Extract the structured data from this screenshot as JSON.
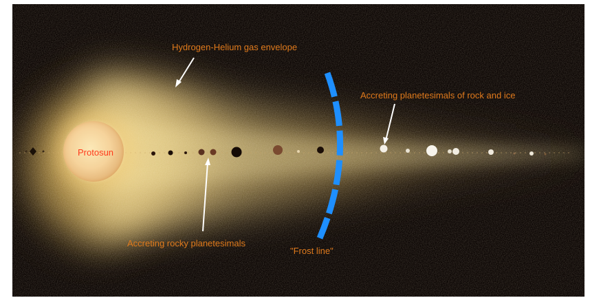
{
  "labels": {
    "protosun": "Protosun",
    "gas_envelope": "Hydrogen-Helium gas envelope",
    "ice_planetesimals": "Accreting planetesimals of rock and ice",
    "rocky_planetesimals": "Accreting rocky planetesimals",
    "frost_line": "\"Frost line\""
  },
  "colors": {
    "background": "#0b0503",
    "label_text": "#e07a1c",
    "protosun_text": "#ff3a1a",
    "frost_line": "#1e8fff",
    "arrows": "#ffffff"
  }
}
